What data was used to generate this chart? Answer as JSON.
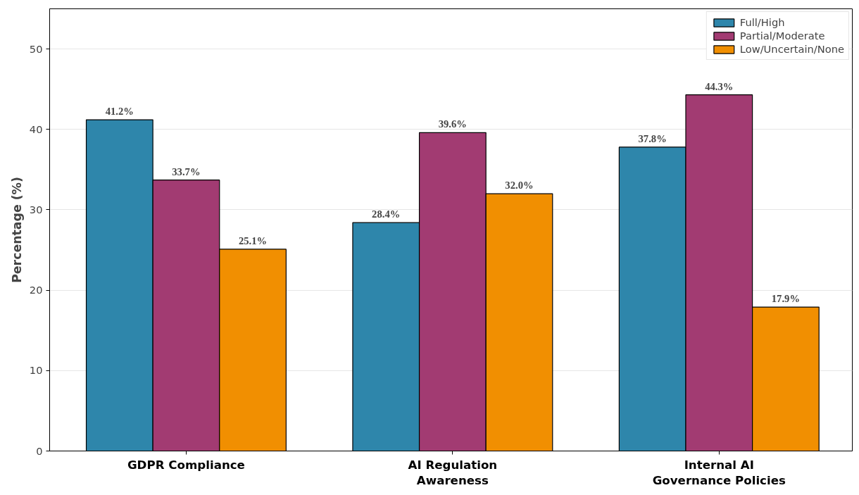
{
  "chart_data": {
    "type": "bar",
    "ylabel": "Percentage (%)",
    "categories": [
      "GDPR Compliance",
      "AI Regulation\nAwareness",
      "Internal AI\nGovernance Policies"
    ],
    "series": [
      {
        "name": "Full/High",
        "color": "#2e86ab",
        "values": [
          41.2,
          28.4,
          37.8
        ]
      },
      {
        "name": "Partial/Moderate",
        "color": "#a23b72",
        "values": [
          33.7,
          39.6,
          44.3
        ]
      },
      {
        "name": "Low/Uncertain/None",
        "color": "#f18f01",
        "values": [
          25.1,
          32.0,
          17.9
        ]
      }
    ],
    "value_labels": [
      [
        "41.2%",
        "28.4%",
        "37.8%"
      ],
      [
        "33.7%",
        "39.6%",
        "44.3%"
      ],
      [
        "25.1%",
        "32.0%",
        "17.9%"
      ]
    ],
    "ylim": [
      0,
      55
    ],
    "yticks": [
      0,
      10,
      20,
      30,
      40,
      50
    ],
    "grid": "y",
    "legend": "top right"
  }
}
